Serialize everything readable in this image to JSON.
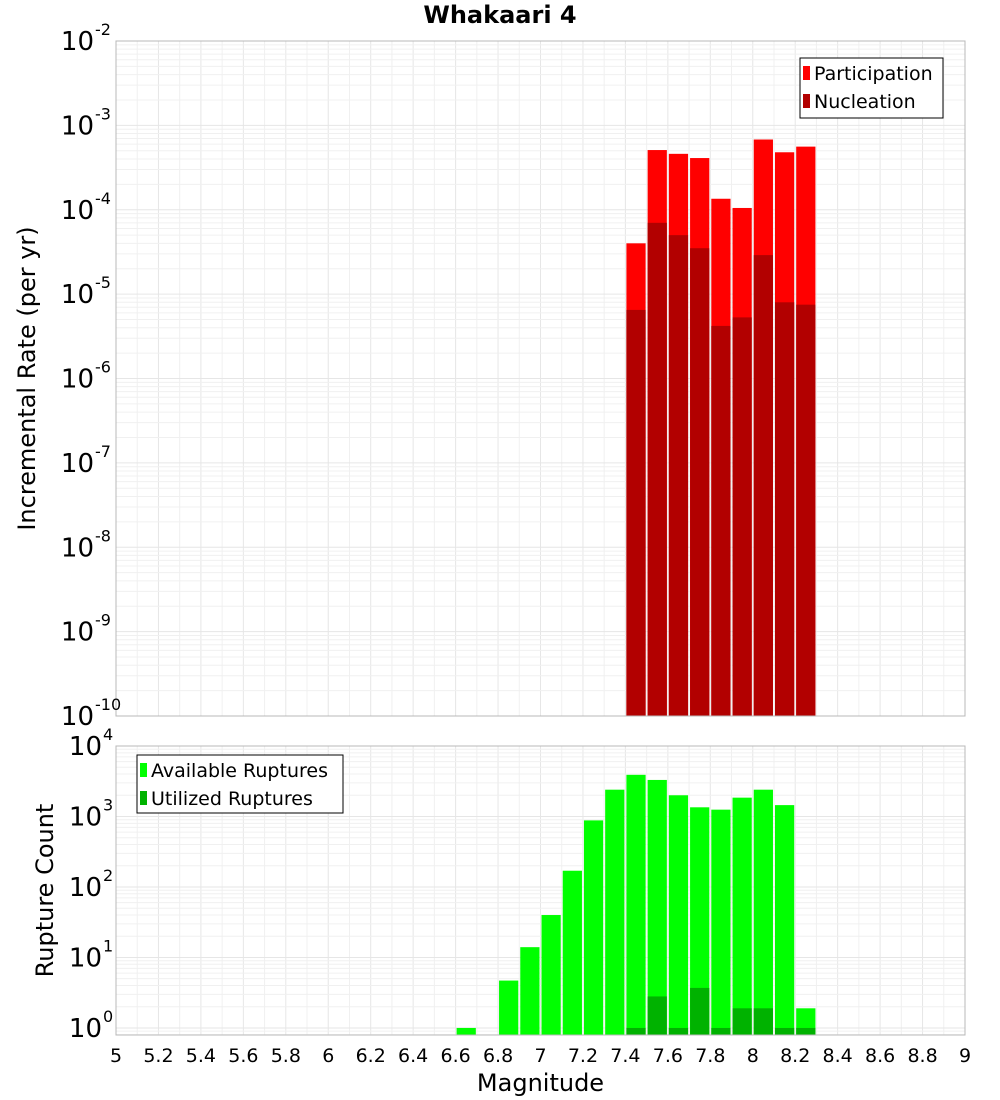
{
  "title": "Whakaari 4",
  "chart_data": [
    {
      "type": "bar",
      "name": "rate-panel",
      "ylabel": "Incremental Rate (per yr)",
      "xlabel": "",
      "xlim": [
        5,
        9
      ],
      "y_scale": "log",
      "ylim_exp": [
        -10,
        -2
      ],
      "y_tick_base": "10",
      "y_tick_exponents": [
        "-10",
        "-9",
        "-8",
        "-7",
        "-6",
        "-5",
        "-4",
        "-3",
        "-2"
      ],
      "grid": true,
      "legend": "top-right",
      "series": [
        {
          "name": "Participation",
          "color": "#ff0000",
          "points": [
            {
              "x": 7.45,
              "y": 4e-05
            },
            {
              "x": 7.55,
              "y": 0.00051
            },
            {
              "x": 7.65,
              "y": 0.00046
            },
            {
              "x": 7.75,
              "y": 0.00041
            },
            {
              "x": 7.85,
              "y": 0.000135
            },
            {
              "x": 7.95,
              "y": 0.000105
            },
            {
              "x": 8.05,
              "y": 0.00068
            },
            {
              "x": 8.15,
              "y": 0.00048
            },
            {
              "x": 8.25,
              "y": 0.00056
            }
          ]
        },
        {
          "name": "Nucleation",
          "color": "#b20000",
          "points": [
            {
              "x": 7.45,
              "y": 6.5e-06
            },
            {
              "x": 7.55,
              "y": 7e-05
            },
            {
              "x": 7.65,
              "y": 5e-05
            },
            {
              "x": 7.75,
              "y": 3.5e-05
            },
            {
              "x": 7.85,
              "y": 4.2e-06
            },
            {
              "x": 7.95,
              "y": 5.3e-06
            },
            {
              "x": 8.05,
              "y": 2.9e-05
            },
            {
              "x": 8.15,
              "y": 8e-06
            },
            {
              "x": 8.25,
              "y": 7.5e-06
            }
          ]
        }
      ]
    },
    {
      "type": "bar",
      "name": "count-panel",
      "ylabel": "Rupture Count",
      "xlabel": "Magnitude",
      "xlim": [
        5,
        9
      ],
      "x_ticks": [
        "5",
        "5.2",
        "5.4",
        "5.6",
        "5.8",
        "6",
        "6.2",
        "6.4",
        "6.6",
        "6.8",
        "7",
        "7.2",
        "7.4",
        "7.6",
        "7.8",
        "8",
        "8.2",
        "8.4",
        "8.6",
        "8.8",
        "9"
      ],
      "y_scale": "log",
      "ylim_exp": [
        -0.1,
        4
      ],
      "y_tick_base": "10",
      "y_tick_exponents": [
        "0",
        "1",
        "2",
        "3",
        "4"
      ],
      "grid": true,
      "legend": "top-left",
      "series": [
        {
          "name": "Available Ruptures",
          "color": "#00ff00",
          "points": [
            {
              "x": 6.65,
              "y": 1
            },
            {
              "x": 6.85,
              "y": 4.7
            },
            {
              "x": 6.95,
              "y": 14
            },
            {
              "x": 7.05,
              "y": 40
            },
            {
              "x": 7.15,
              "y": 170
            },
            {
              "x": 7.25,
              "y": 880
            },
            {
              "x": 7.35,
              "y": 2400
            },
            {
              "x": 7.45,
              "y": 3900
            },
            {
              "x": 7.55,
              "y": 3300
            },
            {
              "x": 7.65,
              "y": 2000
            },
            {
              "x": 7.75,
              "y": 1350
            },
            {
              "x": 7.85,
              "y": 1250
            },
            {
              "x": 7.95,
              "y": 1850
            },
            {
              "x": 8.05,
              "y": 2400
            },
            {
              "x": 8.15,
              "y": 1450
            },
            {
              "x": 8.25,
              "y": 1.9
            }
          ]
        },
        {
          "name": "Utilized Ruptures",
          "color": "#00b200",
          "points": [
            {
              "x": 7.45,
              "y": 1
            },
            {
              "x": 7.55,
              "y": 2.8
            },
            {
              "x": 7.65,
              "y": 1
            },
            {
              "x": 7.75,
              "y": 3.7
            },
            {
              "x": 7.85,
              "y": 1
            },
            {
              "x": 7.95,
              "y": 1.9
            },
            {
              "x": 8.05,
              "y": 1.9
            },
            {
              "x": 8.15,
              "y": 1
            },
            {
              "x": 8.25,
              "y": 1
            }
          ]
        }
      ]
    }
  ]
}
